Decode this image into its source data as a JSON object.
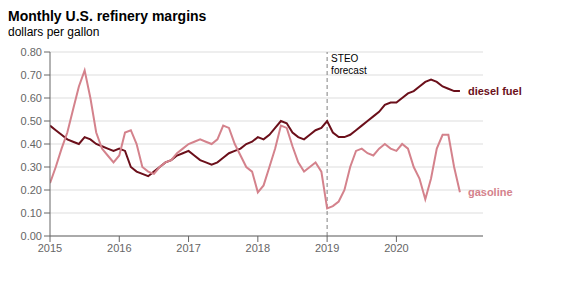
{
  "chart_data": {
    "type": "line",
    "title": "Monthly U.S. refinery margins",
    "subtitle": "dollars per gallon",
    "x": [
      2015.0,
      2015.083,
      2015.167,
      2015.25,
      2015.333,
      2015.417,
      2015.5,
      2015.583,
      2015.667,
      2015.75,
      2015.833,
      2015.917,
      2016.0,
      2016.083,
      2016.167,
      2016.25,
      2016.333,
      2016.417,
      2016.5,
      2016.583,
      2016.667,
      2016.75,
      2016.833,
      2016.917,
      2017.0,
      2017.083,
      2017.167,
      2017.25,
      2017.333,
      2017.417,
      2017.5,
      2017.583,
      2017.667,
      2017.75,
      2017.833,
      2017.917,
      2018.0,
      2018.083,
      2018.167,
      2018.25,
      2018.333,
      2018.417,
      2018.5,
      2018.583,
      2018.667,
      2018.75,
      2018.833,
      2018.917,
      2019.0,
      2019.083,
      2019.167,
      2019.25,
      2019.333,
      2019.417,
      2019.5,
      2019.583,
      2019.667,
      2019.75,
      2019.833,
      2019.917,
      2020.0,
      2020.083,
      2020.167,
      2020.25,
      2020.333,
      2020.417,
      2020.5,
      2020.583,
      2020.667,
      2020.75,
      2020.833,
      2020.917
    ],
    "series": [
      {
        "name": "diesel fuel",
        "color": "#6b0f1a",
        "values": [
          0.48,
          0.46,
          0.44,
          0.42,
          0.41,
          0.4,
          0.43,
          0.42,
          0.4,
          0.39,
          0.38,
          0.37,
          0.38,
          0.37,
          0.3,
          0.28,
          0.27,
          0.26,
          0.28,
          0.3,
          0.32,
          0.33,
          0.35,
          0.36,
          0.37,
          0.35,
          0.33,
          0.32,
          0.31,
          0.32,
          0.34,
          0.36,
          0.37,
          0.38,
          0.4,
          0.41,
          0.43,
          0.42,
          0.44,
          0.47,
          0.5,
          0.49,
          0.45,
          0.43,
          0.42,
          0.44,
          0.46,
          0.47,
          0.5,
          0.45,
          0.43,
          0.43,
          0.44,
          0.46,
          0.48,
          0.5,
          0.52,
          0.54,
          0.57,
          0.58,
          0.58,
          0.6,
          0.62,
          0.63,
          0.65,
          0.67,
          0.68,
          0.67,
          0.65,
          0.64,
          0.63,
          0.63
        ]
      },
      {
        "name": "gasoline",
        "color": "#d4828c",
        "values": [
          0.23,
          0.3,
          0.38,
          0.45,
          0.55,
          0.65,
          0.72,
          0.6,
          0.45,
          0.38,
          0.35,
          0.32,
          0.35,
          0.45,
          0.46,
          0.4,
          0.3,
          0.28,
          0.27,
          0.3,
          0.32,
          0.33,
          0.36,
          0.38,
          0.4,
          0.41,
          0.42,
          0.41,
          0.4,
          0.42,
          0.48,
          0.47,
          0.4,
          0.35,
          0.3,
          0.28,
          0.19,
          0.22,
          0.3,
          0.38,
          0.48,
          0.47,
          0.39,
          0.32,
          0.28,
          0.3,
          0.32,
          0.28,
          0.12,
          0.13,
          0.15,
          0.2,
          0.3,
          0.37,
          0.38,
          0.36,
          0.35,
          0.38,
          0.4,
          0.38,
          0.37,
          0.4,
          0.38,
          0.3,
          0.25,
          0.16,
          0.25,
          0.38,
          0.44,
          0.44,
          0.3,
          0.19
        ]
      }
    ],
    "xlim": [
      2015.0,
      2021.25
    ],
    "xticks": [
      2015,
      2016,
      2017,
      2018,
      2019,
      2020
    ],
    "ylim": [
      0.0,
      0.8
    ],
    "yticks": [
      {
        "value": 0.0,
        "label": "0.00"
      },
      {
        "value": 0.1,
        "label": "0.10"
      },
      {
        "value": 0.2,
        "label": "0.20"
      },
      {
        "value": 0.3,
        "label": "0.30"
      },
      {
        "value": 0.4,
        "label": "0.40"
      },
      {
        "value": 0.5,
        "label": "0.50"
      },
      {
        "value": 0.6,
        "label": "0.60"
      },
      {
        "value": 0.7,
        "label": "0.70"
      },
      {
        "value": 0.8,
        "label": "0.80"
      }
    ],
    "grid": "y",
    "annotations": [
      {
        "text": "STEO\nforecast",
        "x": 2019.0,
        "line_style": "dashed"
      }
    ]
  }
}
